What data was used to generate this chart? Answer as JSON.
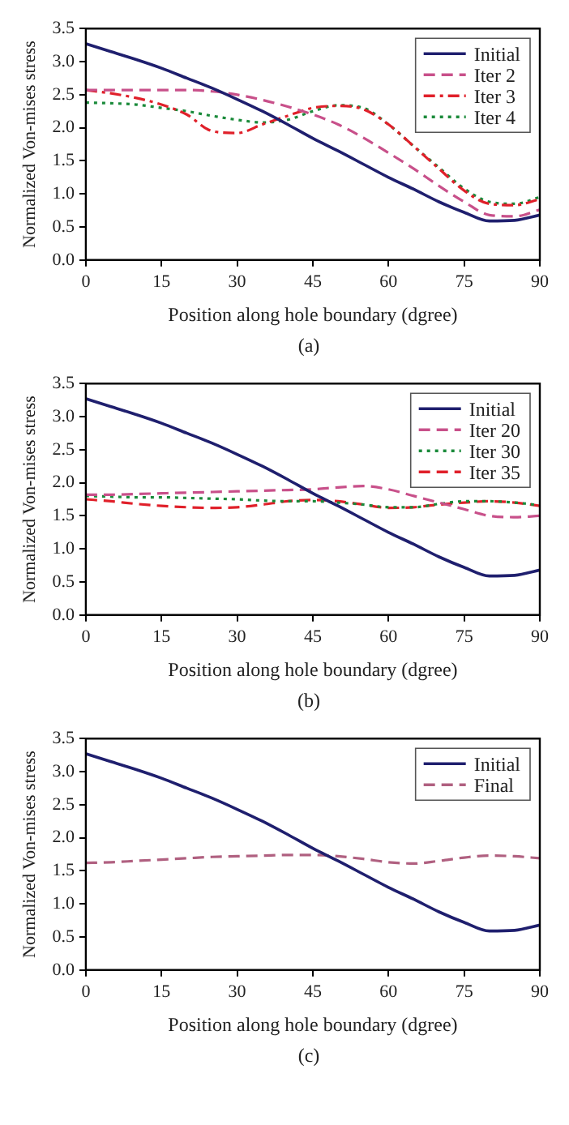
{
  "chart_data": [
    {
      "type": "line",
      "xlabel": "Position along hole boundary (dgree)",
      "ylabel": "Normalized Von-mises stress",
      "annotations": [
        "(a)"
      ],
      "x": [
        0,
        5,
        10,
        15,
        20,
        25,
        30,
        35,
        40,
        45,
        50,
        55,
        60,
        65,
        70,
        75,
        80,
        85,
        90
      ],
      "xlim": [
        0,
        90
      ],
      "xticks": [
        0,
        15,
        30,
        45,
        60,
        75,
        90
      ],
      "ylim": [
        0,
        3.5
      ],
      "yticks": [
        {
          "value": 0,
          "label": "0.0"
        },
        0.5,
        {
          "value": 1,
          "label": "1.0"
        },
        1.5,
        {
          "value": 2,
          "label": "2.0"
        },
        2.5,
        {
          "value": 3,
          "label": "3.0"
        },
        3.5
      ],
      "grid": false,
      "legend": "top right",
      "marker": "none",
      "series": [
        {
          "name": "Initial",
          "color": "#1f1f6e",
          "line_style": "solid",
          "values": [
            3.27,
            3.15,
            3.03,
            2.9,
            2.75,
            2.6,
            2.43,
            2.25,
            2.05,
            1.84,
            1.65,
            1.45,
            1.25,
            1.07,
            0.88,
            0.72,
            0.59,
            0.6,
            0.68
          ]
        },
        {
          "name": "Iter 2",
          "color": "#c8508a",
          "line_style": "dashed",
          "values": [
            2.57,
            2.57,
            2.57,
            2.57,
            2.57,
            2.55,
            2.5,
            2.42,
            2.32,
            2.2,
            2.05,
            1.85,
            1.62,
            1.38,
            1.12,
            0.88,
            0.68,
            0.66,
            0.76
          ]
        },
        {
          "name": "Iter 3",
          "color": "#e0202a",
          "line_style": "dashed",
          "values": [
            2.57,
            2.52,
            2.45,
            2.35,
            2.2,
            1.95,
            1.92,
            2.05,
            2.18,
            2.3,
            2.33,
            2.28,
            2.05,
            1.72,
            1.38,
            1.05,
            0.85,
            0.83,
            0.92
          ]
        },
        {
          "name": "Iter 4",
          "color": "#1a8a3a",
          "line_style": "dotted",
          "values": [
            2.38,
            2.37,
            2.35,
            2.3,
            2.25,
            2.18,
            2.12,
            2.08,
            2.12,
            2.25,
            2.34,
            2.3,
            2.05,
            1.72,
            1.4,
            1.08,
            0.88,
            0.85,
            0.95
          ]
        }
      ]
    },
    {
      "type": "line",
      "xlabel": "Position along hole boundary (dgree)",
      "ylabel": "Normalized Von-mises stress",
      "annotations": [
        "(b)"
      ],
      "x": [
        0,
        5,
        10,
        15,
        20,
        25,
        30,
        35,
        40,
        45,
        50,
        55,
        60,
        65,
        70,
        75,
        80,
        85,
        90
      ],
      "xlim": [
        0,
        90
      ],
      "xticks": [
        0,
        15,
        30,
        45,
        60,
        75,
        90
      ],
      "ylim": [
        0,
        3.5
      ],
      "yticks": [
        {
          "value": 0,
          "label": "0.0"
        },
        0.5,
        {
          "value": 1,
          "label": "1.0"
        },
        1.5,
        {
          "value": 2,
          "label": "2.0"
        },
        2.5,
        {
          "value": 3,
          "label": "3.0"
        },
        3.5
      ],
      "grid": false,
      "legend": "top right",
      "marker": "none",
      "series": [
        {
          "name": "Initial",
          "color": "#1f1f6e",
          "line_style": "solid",
          "values": [
            3.27,
            3.15,
            3.03,
            2.9,
            2.75,
            2.6,
            2.43,
            2.25,
            2.05,
            1.84,
            1.65,
            1.45,
            1.25,
            1.07,
            0.88,
            0.72,
            0.59,
            0.6,
            0.68
          ]
        },
        {
          "name": "Iter 20",
          "color": "#c8508a",
          "line_style": "dashed",
          "values": [
            1.82,
            1.82,
            1.83,
            1.84,
            1.85,
            1.86,
            1.87,
            1.88,
            1.89,
            1.9,
            1.93,
            1.95,
            1.9,
            1.8,
            1.7,
            1.6,
            1.5,
            1.48,
            1.5
          ]
        },
        {
          "name": "Iter 30",
          "color": "#1a8a3a",
          "line_style": "dotted",
          "values": [
            1.8,
            1.79,
            1.78,
            1.78,
            1.77,
            1.76,
            1.75,
            1.73,
            1.72,
            1.72,
            1.7,
            1.67,
            1.63,
            1.63,
            1.68,
            1.72,
            1.72,
            1.7,
            1.66
          ]
        },
        {
          "name": "Iter 35",
          "color": "#e0202a",
          "line_style": "dashed",
          "values": [
            1.75,
            1.72,
            1.68,
            1.65,
            1.63,
            1.62,
            1.63,
            1.67,
            1.72,
            1.74,
            1.72,
            1.67,
            1.62,
            1.63,
            1.67,
            1.7,
            1.72,
            1.7,
            1.65
          ]
        }
      ]
    },
    {
      "type": "line",
      "xlabel": "Position along hole boundary (dgree)",
      "ylabel": "Normalized Von-mises stress",
      "annotations": [
        "(c)"
      ],
      "x": [
        0,
        5,
        10,
        15,
        20,
        25,
        30,
        35,
        40,
        45,
        50,
        55,
        60,
        65,
        70,
        75,
        80,
        85,
        90
      ],
      "xlim": [
        0,
        90
      ],
      "xticks": [
        0,
        15,
        30,
        45,
        60,
        75,
        90
      ],
      "ylim": [
        0,
        3.5
      ],
      "yticks": [
        {
          "value": 0,
          "label": "0.0"
        },
        0.5,
        {
          "value": 1,
          "label": "1.0"
        },
        1.5,
        {
          "value": 2,
          "label": "2.0"
        },
        2.5,
        {
          "value": 3,
          "label": "3.0"
        },
        3.5
      ],
      "grid": false,
      "legend": "top right",
      "marker": "none",
      "series": [
        {
          "name": "Initial",
          "color": "#1f1f6e",
          "line_style": "solid",
          "values": [
            3.27,
            3.15,
            3.03,
            2.9,
            2.75,
            2.6,
            2.43,
            2.25,
            2.05,
            1.84,
            1.65,
            1.45,
            1.25,
            1.07,
            0.88,
            0.72,
            0.59,
            0.6,
            0.68
          ]
        },
        {
          "name": "Final",
          "color": "#b06080",
          "line_style": "dashed",
          "values": [
            1.62,
            1.63,
            1.65,
            1.67,
            1.69,
            1.71,
            1.72,
            1.73,
            1.74,
            1.74,
            1.72,
            1.68,
            1.63,
            1.61,
            1.65,
            1.7,
            1.73,
            1.72,
            1.69
          ]
        }
      ]
    }
  ]
}
